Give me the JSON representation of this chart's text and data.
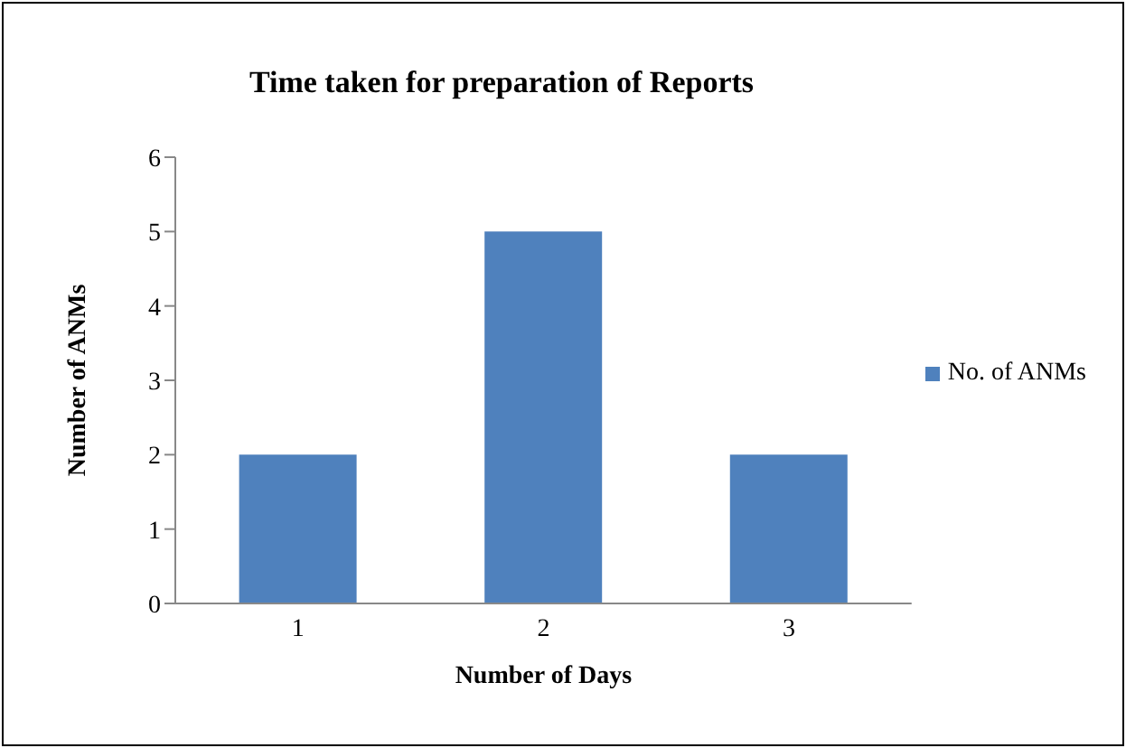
{
  "chart_data": {
    "type": "bar",
    "title": "Time taken for preparation of Reports",
    "xlabel": "Number of Days",
    "ylabel": "Number of ANMs",
    "categories": [
      "1",
      "2",
      "3"
    ],
    "series": [
      {
        "name": "No. of ANMs",
        "color": "#4f81bd",
        "values": [
          2,
          5,
          2
        ]
      }
    ],
    "ylim": [
      0,
      6
    ],
    "yticks": [
      0,
      1,
      2,
      3,
      4,
      5,
      6
    ],
    "grid": false,
    "legend": "right"
  }
}
